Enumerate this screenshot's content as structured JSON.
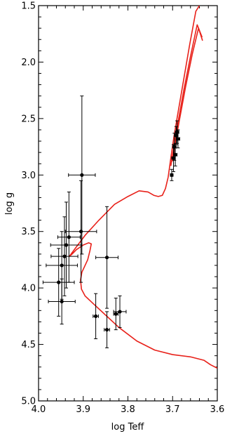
{
  "chart_data": {
    "type": "scatter",
    "title": "",
    "xlabel": "log Teff",
    "ylabel": "log g",
    "xlim": [
      4.0,
      3.6
    ],
    "ylim": [
      5.0,
      1.5
    ],
    "x_reversed": true,
    "y_reversed": true,
    "grid": false,
    "x_ticks": [
      4.0,
      3.9,
      3.8,
      3.7,
      3.6
    ],
    "x_tick_labels": [
      "4.0",
      "3.9",
      "3.8",
      "3.7",
      "3.6"
    ],
    "y_ticks": [
      1.5,
      2.0,
      2.5,
      3.0,
      3.5,
      4.0,
      4.5,
      5.0
    ],
    "y_tick_labels": [
      "1.5",
      "2.0",
      "2.5",
      "3.0",
      "3.5",
      "4.0",
      "4.5",
      "5.0"
    ],
    "points_color": "#000000",
    "points": [
      {
        "x": 3.903,
        "y": 3.0,
        "xerr": 0.03,
        "yerr": 0.7
      },
      {
        "x": 3.905,
        "y": 3.5,
        "xerr": 0.035,
        "yerr": 0.45
      },
      {
        "x": 3.932,
        "y": 3.55,
        "xerr": 0.025,
        "yerr": 0.4
      },
      {
        "x": 3.938,
        "y": 3.62,
        "xerr": 0.035,
        "yerr": 0.38
      },
      {
        "x": 3.942,
        "y": 3.72,
        "xerr": 0.03,
        "yerr": 0.35
      },
      {
        "x": 3.948,
        "y": 3.8,
        "xerr": 0.035,
        "yerr": 0.3
      },
      {
        "x": 3.955,
        "y": 3.95,
        "xerr": 0.035,
        "yerr": 0.3
      },
      {
        "x": 3.948,
        "y": 4.12,
        "xerr": 0.03,
        "yerr": 0.2
      },
      {
        "x": 3.847,
        "y": 3.73,
        "xerr": 0.025,
        "yerr": 0.45
      },
      {
        "x": 3.872,
        "y": 4.25,
        "xerr": 0.006,
        "yerr": 0.2
      },
      {
        "x": 3.847,
        "y": 4.37,
        "xerr": 0.006,
        "yerr": 0.16
      },
      {
        "x": 3.827,
        "y": 4.23,
        "xerr": 0.005,
        "yerr": 0.14
      },
      {
        "x": 3.818,
        "y": 4.21,
        "xerr": 0.014,
        "yerr": 0.14
      },
      {
        "x": 3.702,
        "y": 3.0,
        "xerr": 0.003,
        "yerr": 0.05
      },
      {
        "x": 3.698,
        "y": 2.85,
        "xerr": 0.004,
        "yerr": 0.12
      },
      {
        "x": 3.696,
        "y": 2.75,
        "xerr": 0.004,
        "yerr": 0.12
      },
      {
        "x": 3.694,
        "y": 2.82,
        "xerr": 0.004,
        "yerr": 0.1
      },
      {
        "x": 3.692,
        "y": 2.65,
        "xerr": 0.004,
        "yerr": 0.08
      },
      {
        "x": 3.69,
        "y": 2.62,
        "xerr": 0.004,
        "yerr": 0.1
      },
      {
        "x": 3.688,
        "y": 2.68,
        "xerr": 0.004,
        "yerr": 0.08
      }
    ],
    "track_color": "#e8211a",
    "tracks": [
      {
        "points": [
          [
            3.6,
            4.71
          ],
          [
            3.615,
            4.68
          ],
          [
            3.63,
            4.64
          ],
          [
            3.66,
            4.61
          ],
          [
            3.7,
            4.59
          ],
          [
            3.74,
            4.55
          ],
          [
            3.78,
            4.47
          ],
          [
            3.82,
            4.35
          ],
          [
            3.85,
            4.24
          ],
          [
            3.88,
            4.13
          ],
          [
            3.896,
            4.07
          ],
          [
            3.904,
            4.01
          ],
          [
            3.906,
            3.93
          ],
          [
            3.903,
            3.86
          ],
          [
            3.897,
            3.81
          ],
          [
            3.89,
            3.75
          ],
          [
            3.885,
            3.67
          ],
          [
            3.882,
            3.61
          ],
          [
            3.888,
            3.6
          ],
          [
            3.9,
            3.62
          ],
          [
            3.915,
            3.66
          ],
          [
            3.925,
            3.7
          ],
          [
            3.931,
            3.72
          ],
          [
            3.918,
            3.65
          ],
          [
            3.895,
            3.53
          ],
          [
            3.865,
            3.4
          ],
          [
            3.83,
            3.26
          ],
          [
            3.8,
            3.19
          ],
          [
            3.775,
            3.14
          ],
          [
            3.755,
            3.15
          ],
          [
            3.742,
            3.18
          ],
          [
            3.732,
            3.19
          ],
          [
            3.723,
            3.18
          ],
          [
            3.716,
            3.12
          ],
          [
            3.71,
            3.02
          ],
          [
            3.704,
            2.85
          ],
          [
            3.697,
            2.66
          ],
          [
            3.688,
            2.45
          ],
          [
            3.675,
            2.15
          ],
          [
            3.662,
            1.85
          ],
          [
            3.648,
            1.55
          ],
          [
            3.64,
            1.5
          ]
        ]
      },
      {
        "points": [
          [
            3.704,
            2.92
          ],
          [
            3.69,
            2.58
          ],
          [
            3.675,
            2.25
          ],
          [
            3.66,
            1.95
          ],
          [
            3.645,
            1.67
          ],
          [
            3.634,
            1.78
          ]
        ]
      },
      {
        "points": [
          [
            3.701,
            2.88
          ],
          [
            3.686,
            2.54
          ],
          [
            3.671,
            2.22
          ],
          [
            3.656,
            1.93
          ],
          [
            3.642,
            1.7
          ],
          [
            3.633,
            1.81
          ]
        ]
      }
    ]
  }
}
